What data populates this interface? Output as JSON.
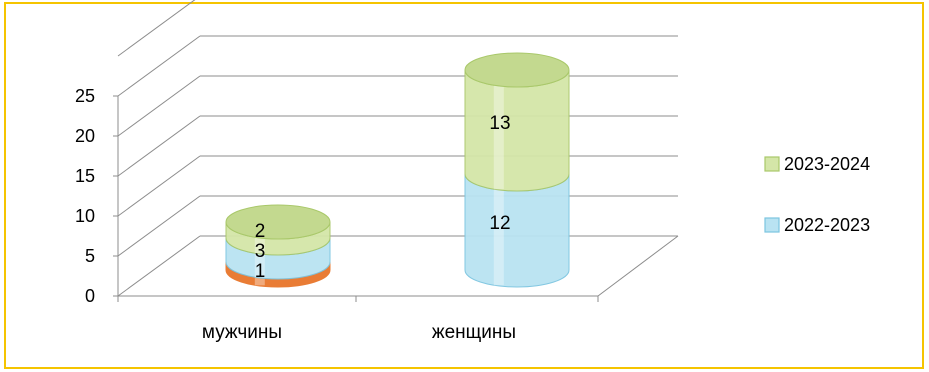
{
  "colors": {
    "border": "#f5c400",
    "grid": "#8c8c8c",
    "orange": "#e8762b",
    "blue": "#b9e3f2",
    "blue_edge": "#7cc5e0",
    "green": "#d4e6a8",
    "green_edge": "#a9c86a",
    "green_top": "#c3d98f"
  },
  "chart_data": {
    "type": "bar",
    "stacked": true,
    "style": "3d-cylinder",
    "categories": [
      "мужчины",
      "женщины"
    ],
    "series": [
      {
        "values": [
          1,
          0
        ],
        "color": "orange"
      },
      {
        "name": "2022-2023",
        "values": [
          3,
          12
        ],
        "color": "blue"
      },
      {
        "name": "2023-2024",
        "values": [
          2,
          13
        ],
        "color": "green"
      }
    ],
    "ylim": [
      0,
      25
    ],
    "yticks": [
      0,
      5,
      10,
      15,
      20,
      25
    ],
    "grid": true,
    "legend_position": "right"
  },
  "legend": {
    "items": [
      {
        "label": "2023-2024",
        "color": "green"
      },
      {
        "label": "2022-2023",
        "color": "blue"
      }
    ]
  }
}
